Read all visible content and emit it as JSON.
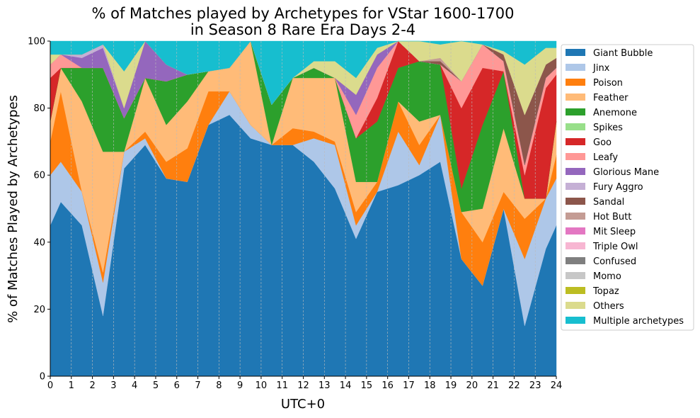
{
  "chart_data": {
    "type": "area",
    "stacked": true,
    "title": "% of Matches played by Archetypes for VStar 1600-1700",
    "subtitle": "in Season 8 Rare Era Days 2-4",
    "xlabel": "UTC+0",
    "ylabel": "% of Matches Played by Archetypes",
    "xlim": [
      0,
      24
    ],
    "ylim": [
      0,
      100
    ],
    "x_ticks": [
      0,
      1,
      2,
      3,
      4,
      5,
      6,
      7,
      8,
      9,
      10,
      11,
      12,
      13,
      14,
      15,
      16,
      17,
      18,
      19,
      20,
      21,
      22,
      23,
      24
    ],
    "y_ticks": [
      0,
      20,
      40,
      60,
      80,
      100
    ],
    "grid": "vertical dashed",
    "legend_position": "outside right",
    "x": [
      0,
      0.5,
      1.5,
      2.5,
      3.5,
      4.5,
      5.5,
      6.5,
      7.5,
      8.5,
      9.5,
      10.5,
      11.5,
      12.5,
      13.5,
      14.5,
      15.5,
      16.5,
      17.5,
      18.5,
      19.5,
      20.5,
      21.5,
      22.5,
      23.5,
      24
    ],
    "series": [
      {
        "name": "Giant Bubble",
        "color": "#1f77b4",
        "values": [
          45,
          52,
          45,
          18,
          62,
          69,
          59,
          58,
          75,
          78,
          71,
          69,
          69,
          64,
          56,
          41,
          55,
          57,
          60,
          64,
          35,
          27,
          50,
          15,
          38,
          45
        ]
      },
      {
        "name": "Jinx",
        "color": "#aec7e8",
        "values": [
          15,
          12,
          10,
          10,
          5,
          2,
          0,
          0,
          0,
          7,
          4,
          0,
          0,
          7,
          13,
          4,
          0,
          16,
          3,
          14,
          0,
          0,
          0,
          20,
          15,
          14
        ]
      },
      {
        "name": "Poison",
        "color": "#ff7f0e",
        "values": [
          10,
          21,
          0,
          3,
          0,
          2,
          5,
          10,
          10,
          0,
          0,
          0,
          5,
          2,
          1,
          4,
          3,
          9,
          6,
          0,
          14,
          13,
          5,
          12,
          0,
          7
        ]
      },
      {
        "name": "Feather",
        "color": "#ffbb78",
        "values": [
          6,
          7,
          27,
          36,
          0,
          16,
          11,
          14,
          6,
          7,
          25,
          0,
          15,
          16,
          19,
          9,
          0,
          0,
          7,
          0,
          0,
          10,
          19,
          6,
          0,
          10
        ]
      },
      {
        "name": "Anemone",
        "color": "#2ca02c",
        "values": [
          0,
          0,
          10,
          25,
          10,
          0,
          13,
          8,
          0,
          0,
          0,
          12,
          0,
          3,
          0,
          13,
          18,
          10,
          18,
          15,
          7,
          25,
          17,
          0,
          0,
          0
        ]
      },
      {
        "name": "Spikes",
        "color": "#98df8a",
        "values": [
          0,
          0,
          0,
          0,
          0,
          0,
          0,
          0,
          0,
          0,
          0,
          0,
          0,
          0,
          0,
          0,
          0,
          0,
          0,
          0,
          0,
          0,
          0,
          0,
          0,
          0
        ]
      },
      {
        "name": "Goo",
        "color": "#d62728",
        "values": [
          13,
          0,
          0,
          0,
          0,
          0,
          0,
          0,
          0,
          0,
          0,
          0,
          0,
          0,
          0,
          0,
          7,
          8,
          0,
          0,
          24,
          17,
          0,
          7,
          33,
          14
        ]
      },
      {
        "name": "Leafy",
        "color": "#ff9896",
        "values": [
          4,
          4,
          0,
          0,
          0,
          0,
          0,
          0,
          0,
          0,
          0,
          0,
          0,
          0,
          0,
          7,
          9,
          0,
          0,
          0,
          8,
          7,
          3,
          3,
          3,
          2
        ]
      },
      {
        "name": "Glorious Mane",
        "color": "#9467bd",
        "values": [
          0,
          0,
          3,
          6,
          3,
          11,
          5,
          0,
          0,
          0,
          0,
          0,
          0,
          0,
          0,
          6,
          4,
          0,
          0,
          0,
          0,
          0,
          0,
          0,
          0,
          0
        ]
      },
      {
        "name": "Fury Aggro",
        "color": "#c5b0d5",
        "values": [
          0,
          0,
          1,
          1,
          0,
          0,
          0,
          0,
          0,
          0,
          0,
          0,
          0,
          0,
          0,
          0,
          0,
          0,
          0,
          0,
          0,
          0,
          0,
          0,
          0,
          0
        ]
      },
      {
        "name": "Sandal",
        "color": "#8c564b",
        "values": [
          0,
          0,
          0,
          0,
          0,
          0,
          0,
          0,
          0,
          0,
          0,
          0,
          0,
          0,
          0,
          0,
          0,
          0,
          0,
          1,
          0,
          0,
          2,
          15,
          4,
          3
        ]
      },
      {
        "name": "Hot Butt",
        "color": "#c49c94",
        "values": [
          0,
          0,
          0,
          0,
          0,
          0,
          0,
          0,
          0,
          0,
          0,
          0,
          0,
          0,
          0,
          0,
          0,
          0,
          0,
          1,
          0,
          0,
          0,
          0,
          0,
          0
        ]
      },
      {
        "name": "Mit Sleep",
        "color": "#e377c2",
        "values": [
          0,
          0,
          0,
          0,
          0,
          0,
          0,
          0,
          0,
          0,
          0,
          0,
          0,
          0,
          0,
          0,
          0,
          0,
          0,
          0,
          0,
          0,
          0,
          0,
          0,
          0
        ]
      },
      {
        "name": "Triple Owl",
        "color": "#f7b6d2",
        "values": [
          0,
          0,
          0,
          0,
          0,
          0,
          0,
          0,
          0,
          0,
          0,
          0,
          0,
          0,
          0,
          0,
          0,
          0,
          0,
          0,
          0,
          0,
          0,
          0,
          0,
          0
        ]
      },
      {
        "name": "Confused",
        "color": "#7f7f7f",
        "values": [
          0,
          0,
          0,
          0,
          0,
          0,
          0,
          0,
          0,
          0,
          0,
          0,
          0,
          0,
          0,
          0,
          0,
          0,
          0,
          0,
          0,
          0,
          0,
          0,
          0,
          0
        ]
      },
      {
        "name": "Momo",
        "color": "#c7c7c7",
        "values": [
          0,
          0,
          0,
          0,
          0,
          0,
          0,
          0,
          0,
          0,
          0,
          0,
          0,
          0,
          0,
          0,
          0,
          0,
          0,
          0,
          0,
          0,
          0,
          0,
          0,
          0
        ]
      },
      {
        "name": "Topaz",
        "color": "#bcbd22",
        "values": [
          0,
          0,
          0,
          0,
          0,
          0,
          0,
          0,
          0,
          0,
          0,
          0,
          0,
          0,
          0,
          0,
          0,
          0,
          0,
          0,
          0,
          0,
          0,
          0,
          0,
          0
        ]
      },
      {
        "name": "Others",
        "color": "#dbdb8d",
        "values": [
          3,
          0,
          0,
          0,
          11,
          0,
          0,
          0,
          0,
          0,
          0,
          0,
          0,
          2,
          5,
          5,
          2,
          0,
          6,
          4,
          12,
          0,
          1,
          15,
          5,
          3
        ]
      },
      {
        "name": "Multiple archetypes",
        "color": "#17becf",
        "values": [
          4,
          4,
          4,
          1,
          9,
          0,
          7,
          10,
          9,
          8,
          0,
          19,
          11,
          6,
          6,
          11,
          2,
          0,
          0,
          1,
          0,
          1,
          3,
          7,
          2,
          2
        ]
      }
    ]
  }
}
